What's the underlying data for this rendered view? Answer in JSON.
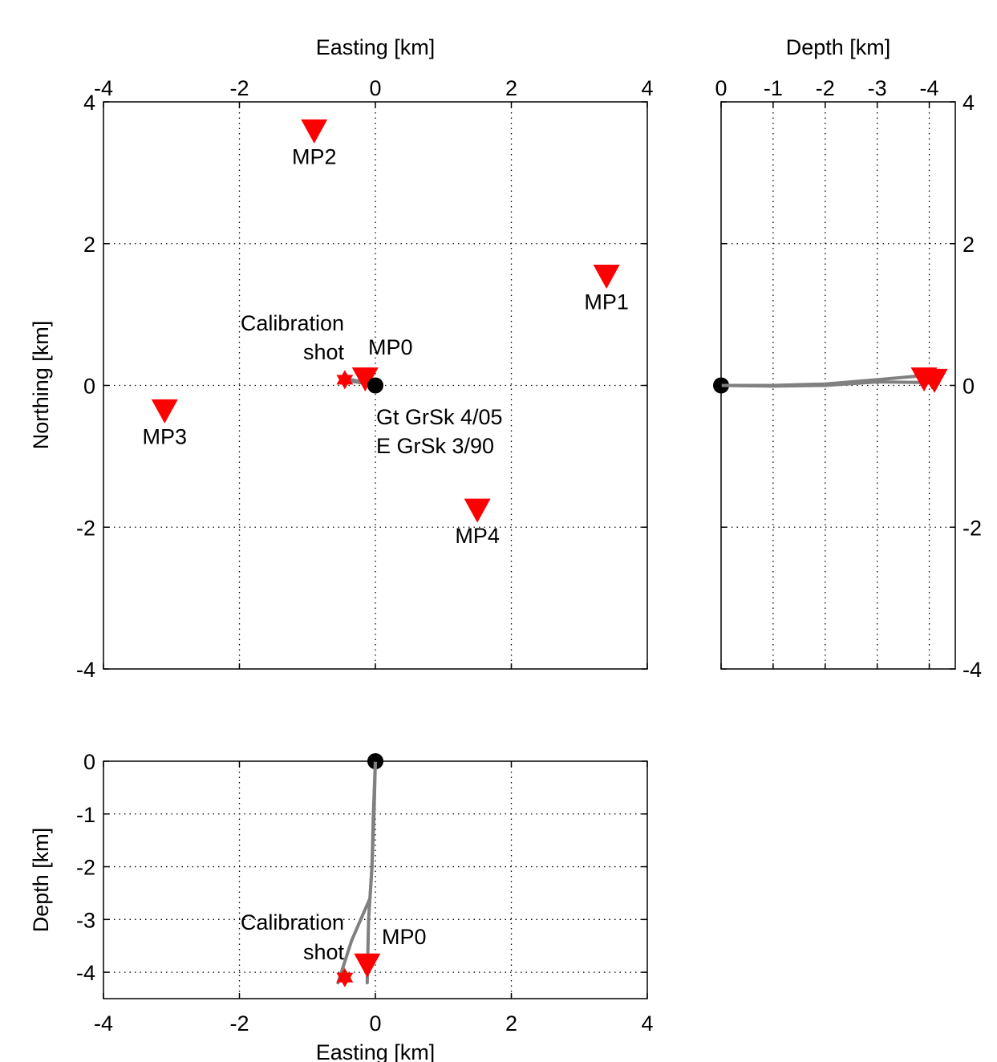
{
  "chart_data": [
    {
      "type": "scatter",
      "panel": "map-view",
      "xlabel": "Easting [km]",
      "ylabel": "Northing [km]",
      "xlim": [
        -4,
        4
      ],
      "ylim": [
        -4,
        4
      ],
      "x_ticks": [
        -4,
        -2,
        0,
        2,
        4
      ],
      "y_ticks": [
        -4,
        -2,
        0,
        2,
        4
      ],
      "x_tick_labels": [
        "-4",
        "-2",
        "0",
        "2",
        "4"
      ],
      "y_tick_labels": [
        "-4",
        "-2",
        "0",
        "2",
        "4"
      ],
      "x_axis_position": "top",
      "y_axis_position": "left",
      "grid": true,
      "stations": [
        {
          "label": "MP1",
          "x": 3.4,
          "y": 1.55
        },
        {
          "label": "MP2",
          "x": -0.9,
          "y": 3.6
        },
        {
          "label": "MP3",
          "x": -3.1,
          "y": -0.35
        },
        {
          "label": "MP4",
          "x": 1.5,
          "y": -1.75
        },
        {
          "label": "MP0",
          "x": -0.15,
          "y": 0.1
        }
      ],
      "wellhead": {
        "x": 0,
        "y": 0
      },
      "shot": {
        "x": -0.45,
        "y": 0.08
      },
      "well_paths": [
        {
          "x": [
            0,
            -0.12,
            -0.3,
            -0.45
          ],
          "y": [
            0,
            0.03,
            0.07,
            0.1
          ]
        },
        {
          "x": [
            0,
            -0.1,
            -0.3,
            -0.5
          ],
          "y": [
            0,
            0.02,
            0.05,
            0.08
          ]
        }
      ],
      "annotations": {
        "shot_label": [
          "Calibration",
          "shot"
        ],
        "station_label": "MP0",
        "well_labels": [
          "Gt GrSk 4/05",
          "E GrSk 3/90"
        ]
      }
    },
    {
      "type": "line",
      "panel": "depth-northing",
      "xlabel": "Depth [km]",
      "xlim": [
        0,
        -4.5
      ],
      "ylim": [
        -4,
        4
      ],
      "x_ticks": [
        0,
        -1,
        -2,
        -3,
        -4
      ],
      "x_tick_labels": [
        "0",
        "-1",
        "-2",
        "-3",
        "-4"
      ],
      "y_ticks": [
        -4,
        -2,
        0,
        2,
        4
      ],
      "y_tick_labels": [
        "-4",
        "-2",
        "0",
        "2",
        "4"
      ],
      "x_axis_position": "top",
      "y_axis_position": "right",
      "grid": true,
      "wellhead": {
        "depth": 0,
        "y": 0
      },
      "stations": [
        {
          "depth": -3.9,
          "y": 0.1
        },
        {
          "depth": -4.1,
          "y": 0.08
        }
      ],
      "shot": {
        "depth": -4.05,
        "y": 0.08
      },
      "well_paths": [
        {
          "depth": [
            0,
            -1,
            -2,
            -3,
            -3.9
          ],
          "y": [
            0,
            0,
            0.02,
            0.08,
            0.14
          ]
        },
        {
          "depth": [
            0,
            -1,
            -2,
            -3,
            -4.1
          ],
          "y": [
            0,
            -0.01,
            0,
            0.05,
            0.04
          ]
        }
      ]
    },
    {
      "type": "line",
      "panel": "depth-easting",
      "xlabel": "Easting [km]",
      "ylabel": "Depth [km]",
      "xlim": [
        -4,
        4
      ],
      "ylim": [
        -4.5,
        0
      ],
      "x_ticks": [
        -4,
        -2,
        0,
        2,
        4
      ],
      "x_tick_labels": [
        "-4",
        "-2",
        "0",
        "2",
        "4"
      ],
      "y_ticks": [
        0,
        -1,
        -2,
        -3,
        -4
      ],
      "y_tick_labels": [
        "0",
        "-1",
        "-2",
        "-3",
        "-4"
      ],
      "x_axis_position": "bottom",
      "y_axis_position": "left",
      "grid": true,
      "wellhead": {
        "x": 0,
        "depth": 0
      },
      "stations": [
        {
          "label": "MP0",
          "x": -0.12,
          "depth": -3.85
        }
      ],
      "shot": {
        "x": -0.45,
        "depth": -4.1
      },
      "well_paths": [
        {
          "x": [
            0,
            -0.03,
            -0.05,
            -0.08,
            -0.35,
            -0.55
          ],
          "depth": [
            0,
            -1,
            -2,
            -2.6,
            -3.4,
            -4.2
          ]
        },
        {
          "x": [
            0,
            -0.02,
            -0.05,
            -0.1,
            -0.12
          ],
          "depth": [
            0,
            -1,
            -2,
            -3,
            -4.2
          ]
        }
      ],
      "annotations": {
        "shot_label": [
          "Calibration",
          "shot"
        ],
        "station_label": "MP0"
      }
    }
  ],
  "style": {
    "station_color": "#ff0000",
    "well_path_color": "#808080",
    "wellhead_color": "#000000",
    "shot_color": "#ff0000",
    "axis_color": "#000000",
    "grid_color": "#000000"
  }
}
